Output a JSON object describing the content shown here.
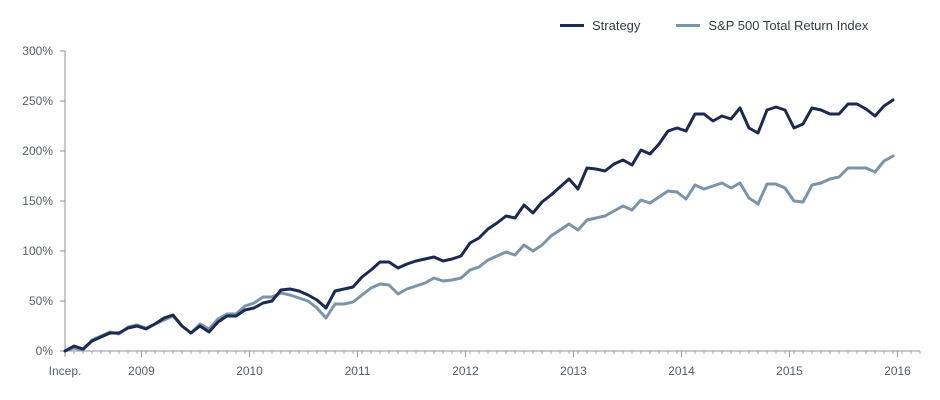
{
  "chart_data": {
    "type": "line",
    "title": "",
    "xlabel": "",
    "ylabel": "",
    "ylim": [
      0,
      300
    ],
    "xlim": [
      0,
      95
    ],
    "grid": false,
    "legend_position": "top-right",
    "y_ticks": [
      {
        "value": 0,
        "label": "0%"
      },
      {
        "value": 50,
        "label": "50%"
      },
      {
        "value": 100,
        "label": "100%"
      },
      {
        "value": 150,
        "label": "150%"
      },
      {
        "value": 200,
        "label": "200%"
      },
      {
        "value": 250,
        "label": "250%"
      },
      {
        "value": 300,
        "label": "300%"
      }
    ],
    "x_ticks": [
      {
        "value": 0,
        "label": "Incep."
      },
      {
        "value": 8.5,
        "label": "2009"
      },
      {
        "value": 20.5,
        "label": "2010"
      },
      {
        "value": 32.5,
        "label": "2011"
      },
      {
        "value": 44.5,
        "label": "2012"
      },
      {
        "value": 56.5,
        "label": "2013"
      },
      {
        "value": 68.5,
        "label": "2014"
      },
      {
        "value": 80.5,
        "label": "2015"
      },
      {
        "value": 92.5,
        "label": "2016"
      }
    ],
    "series": [
      {
        "name": "Strategy",
        "color": "#1b2a52",
        "values": [
          0,
          5,
          2,
          10,
          14,
          18,
          18,
          23,
          25,
          22,
          27,
          33,
          36,
          25,
          18,
          25,
          19,
          29,
          35,
          35,
          41,
          43,
          48,
          50,
          61,
          62,
          60,
          56,
          51,
          43,
          60,
          62,
          64,
          74,
          81,
          89,
          89,
          83,
          87,
          90,
          92,
          94,
          90,
          92,
          95,
          108,
          113,
          122,
          128,
          135,
          133,
          146,
          138,
          149,
          156,
          164,
          172,
          162,
          183,
          182,
          180,
          187,
          191,
          186,
          201,
          197,
          207,
          220,
          223,
          220,
          237,
          237,
          230,
          235,
          232,
          243,
          223,
          218,
          241,
          244,
          241,
          223,
          227,
          243,
          241,
          237,
          237,
          247,
          247,
          242,
          235,
          245,
          251
        ]
      },
      {
        "name": "S&P 500 Total Return Index",
        "color": "#7a95aa",
        "values": [
          0,
          3,
          1,
          11,
          15,
          19,
          17,
          24,
          26,
          23,
          27,
          31,
          35,
          25,
          18,
          27,
          22,
          32,
          37,
          37,
          45,
          48,
          54,
          54,
          58,
          56,
          53,
          50,
          43,
          33,
          47,
          47,
          49,
          56,
          63,
          67,
          66,
          57,
          62,
          65,
          68,
          73,
          70,
          71,
          73,
          81,
          84,
          91,
          95,
          99,
          96,
          106,
          100,
          106,
          115,
          121,
          127,
          121,
          131,
          133,
          135,
          140,
          145,
          141,
          151,
          148,
          154,
          160,
          159,
          152,
          166,
          162,
          165,
          168,
          163,
          168,
          153,
          147,
          167,
          167,
          163,
          150,
          149,
          166,
          168,
          172,
          174,
          183,
          183,
          183,
          179,
          190,
          195
        ]
      }
    ]
  }
}
